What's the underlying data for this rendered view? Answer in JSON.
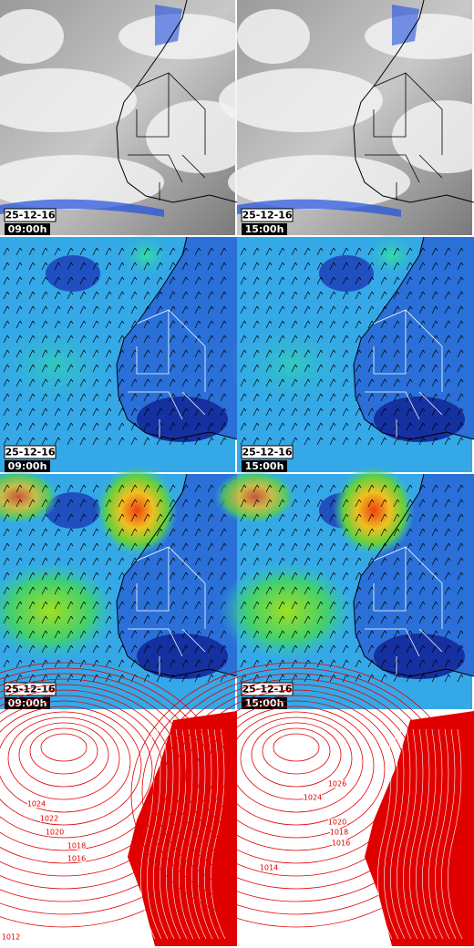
{
  "panels": [
    {
      "date": "25-12-16",
      "time": "09:00h"
    },
    {
      "date": "25-12-16",
      "time": "15:00h"
    },
    {
      "date": "25-12-16",
      "time": "09:00h"
    },
    {
      "date": "25-12-16",
      "time": "15:00h"
    },
    {
      "date": "25-12-16",
      "time": "09:00h"
    },
    {
      "date": "25-12-16",
      "time": "15:00h"
    },
    {
      "date": "",
      "time": ""
    },
    {
      "date": "",
      "time": ""
    }
  ],
  "isobar_labels": [
    [
      "1024",
      "1022",
      "1020",
      "1018",
      "1016",
      "1012"
    ],
    [
      "1026",
      "1024",
      "1020",
      "1018",
      "1016",
      "1014"
    ]
  ]
}
